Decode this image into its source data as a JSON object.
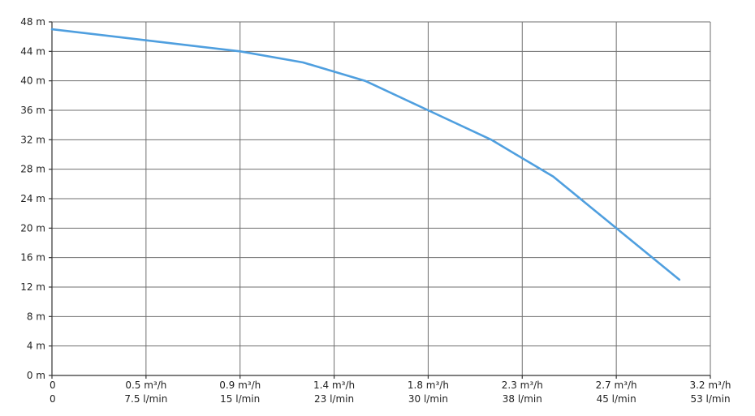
{
  "chart_data": {
    "type": "line",
    "title": "",
    "xlabel": "",
    "ylabel": "",
    "grid": true,
    "legend": "none",
    "line_color": "#4f9fdf",
    "x_ticks": [
      {
        "value": 0,
        "flow_m3h": "0",
        "flow_lmin": "0"
      },
      {
        "value": 1,
        "flow_m3h": "0.5 m³/h",
        "flow_lmin": "7.5 l/min"
      },
      {
        "value": 2,
        "flow_m3h": "0.9 m³/h",
        "flow_lmin": "15 l/min"
      },
      {
        "value": 3,
        "flow_m3h": "1.4 m³/h",
        "flow_lmin": "23 l/min"
      },
      {
        "value": 4,
        "flow_m3h": "1.8 m³/h",
        "flow_lmin": "30 l/min"
      },
      {
        "value": 5,
        "flow_m3h": "2.3 m³/h",
        "flow_lmin": "38 l/min"
      },
      {
        "value": 6,
        "flow_m3h": "2.7 m³/h",
        "flow_lmin": "45 l/min"
      },
      {
        "value": 7,
        "flow_m3h": "3.2 m³/h",
        "flow_lmin": "53 l/min"
      }
    ],
    "y_ticks": [
      "0 m",
      "4 m",
      "8 m",
      "12 m",
      "16 m",
      "20 m",
      "24 m",
      "28 m",
      "32 m",
      "36 m",
      "40 m",
      "44 m",
      "48 m"
    ],
    "xlim": [
      0,
      7
    ],
    "ylim": [
      0,
      48
    ],
    "y_unit": "m",
    "series": [
      {
        "x": [
          0,
          1,
          2,
          2.67,
          3.33,
          4,
          4.67,
          5.33,
          6,
          6.67
        ],
        "y": [
          47,
          45.5,
          44,
          42.5,
          40,
          36,
          32,
          27,
          20,
          13
        ]
      }
    ]
  }
}
